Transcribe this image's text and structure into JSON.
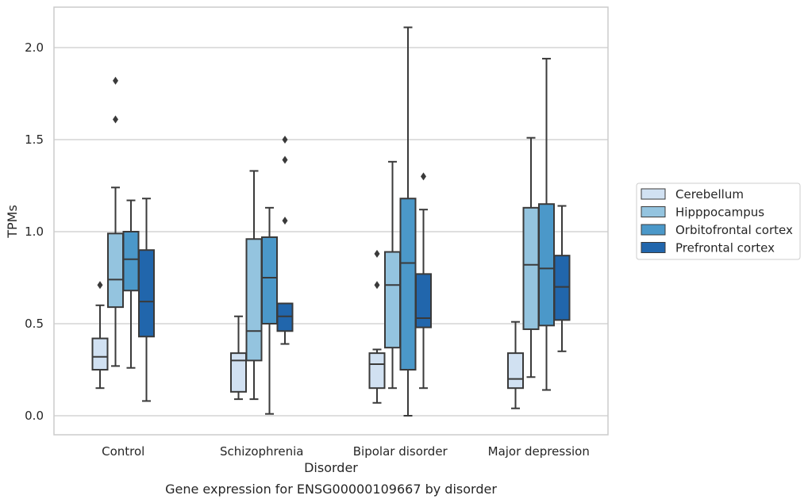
{
  "chart_data": {
    "type": "boxplot",
    "title": "",
    "caption": "Gene expression for ENSG00000109667 by disorder",
    "xlabel": "Disorder",
    "ylabel": "TPMs",
    "ylim": [
      -0.1,
      2.23
    ],
    "yticks": [
      "0.0",
      "0.5",
      "1.0",
      "1.5",
      "2.0"
    ],
    "grid": "horizontal",
    "legend_position": "right",
    "categories": [
      "Control",
      "Schizophrenia",
      "Bipolar disorder",
      "Major depression"
    ],
    "series": [
      {
        "name": "Cerebellum",
        "color": "#d1e1f2",
        "boxes": [
          {
            "whislo": 0.15,
            "q1": 0.25,
            "med": 0.32,
            "q3": 0.42,
            "whishi": 0.6,
            "fliers": [
              0.71
            ]
          },
          {
            "whislo": 0.09,
            "q1": 0.13,
            "med": 0.3,
            "q3": 0.34,
            "whishi": 0.54,
            "fliers": []
          },
          {
            "whislo": 0.07,
            "q1": 0.15,
            "med": 0.28,
            "q3": 0.34,
            "whishi": 0.36,
            "fliers": [
              0.71,
              0.88
            ]
          },
          {
            "whislo": 0.04,
            "q1": 0.15,
            "med": 0.2,
            "q3": 0.34,
            "whishi": 0.51,
            "fliers": []
          }
        ]
      },
      {
        "name": "Hipppocampus",
        "color": "#94c4df",
        "boxes": [
          {
            "whislo": 0.27,
            "q1": 0.59,
            "med": 0.74,
            "q3": 0.99,
            "whishi": 1.24,
            "fliers": [
              1.61,
              1.82
            ]
          },
          {
            "whislo": 0.09,
            "q1": 0.3,
            "med": 0.46,
            "q3": 0.96,
            "whishi": 1.33,
            "fliers": []
          },
          {
            "whislo": 0.15,
            "q1": 0.37,
            "med": 0.71,
            "q3": 0.89,
            "whishi": 1.38,
            "fliers": []
          },
          {
            "whislo": 0.21,
            "q1": 0.47,
            "med": 0.82,
            "q3": 1.13,
            "whishi": 1.51,
            "fliers": []
          }
        ]
      },
      {
        "name": "Orbitofrontal cortex",
        "color": "#4b98c9",
        "boxes": [
          {
            "whislo": 0.26,
            "q1": 0.68,
            "med": 0.85,
            "q3": 1.0,
            "whishi": 1.17,
            "fliers": []
          },
          {
            "whislo": 0.01,
            "q1": 0.5,
            "med": 0.75,
            "q3": 0.97,
            "whishi": 1.13,
            "fliers": []
          },
          {
            "whislo": 0.0,
            "q1": 0.25,
            "med": 0.83,
            "q3": 1.18,
            "whishi": 2.11,
            "fliers": []
          },
          {
            "whislo": 0.14,
            "q1": 0.49,
            "med": 0.8,
            "q3": 1.15,
            "whishi": 1.94,
            "fliers": []
          }
        ]
      },
      {
        "name": "Prefrontal cortex",
        "color": "#2166ac",
        "boxes": [
          {
            "whislo": 0.08,
            "q1": 0.43,
            "med": 0.62,
            "q3": 0.9,
            "whishi": 1.18,
            "fliers": []
          },
          {
            "whislo": 0.39,
            "q1": 0.46,
            "med": 0.54,
            "q3": 0.61,
            "whishi": 0.61,
            "fliers": [
              1.06,
              1.39,
              1.5
            ]
          },
          {
            "whislo": 0.15,
            "q1": 0.48,
            "med": 0.53,
            "q3": 0.77,
            "whishi": 1.12,
            "fliers": [
              1.3
            ]
          },
          {
            "whislo": 0.35,
            "q1": 0.52,
            "med": 0.7,
            "q3": 0.87,
            "whishi": 1.14,
            "fliers": []
          }
        ]
      }
    ]
  }
}
